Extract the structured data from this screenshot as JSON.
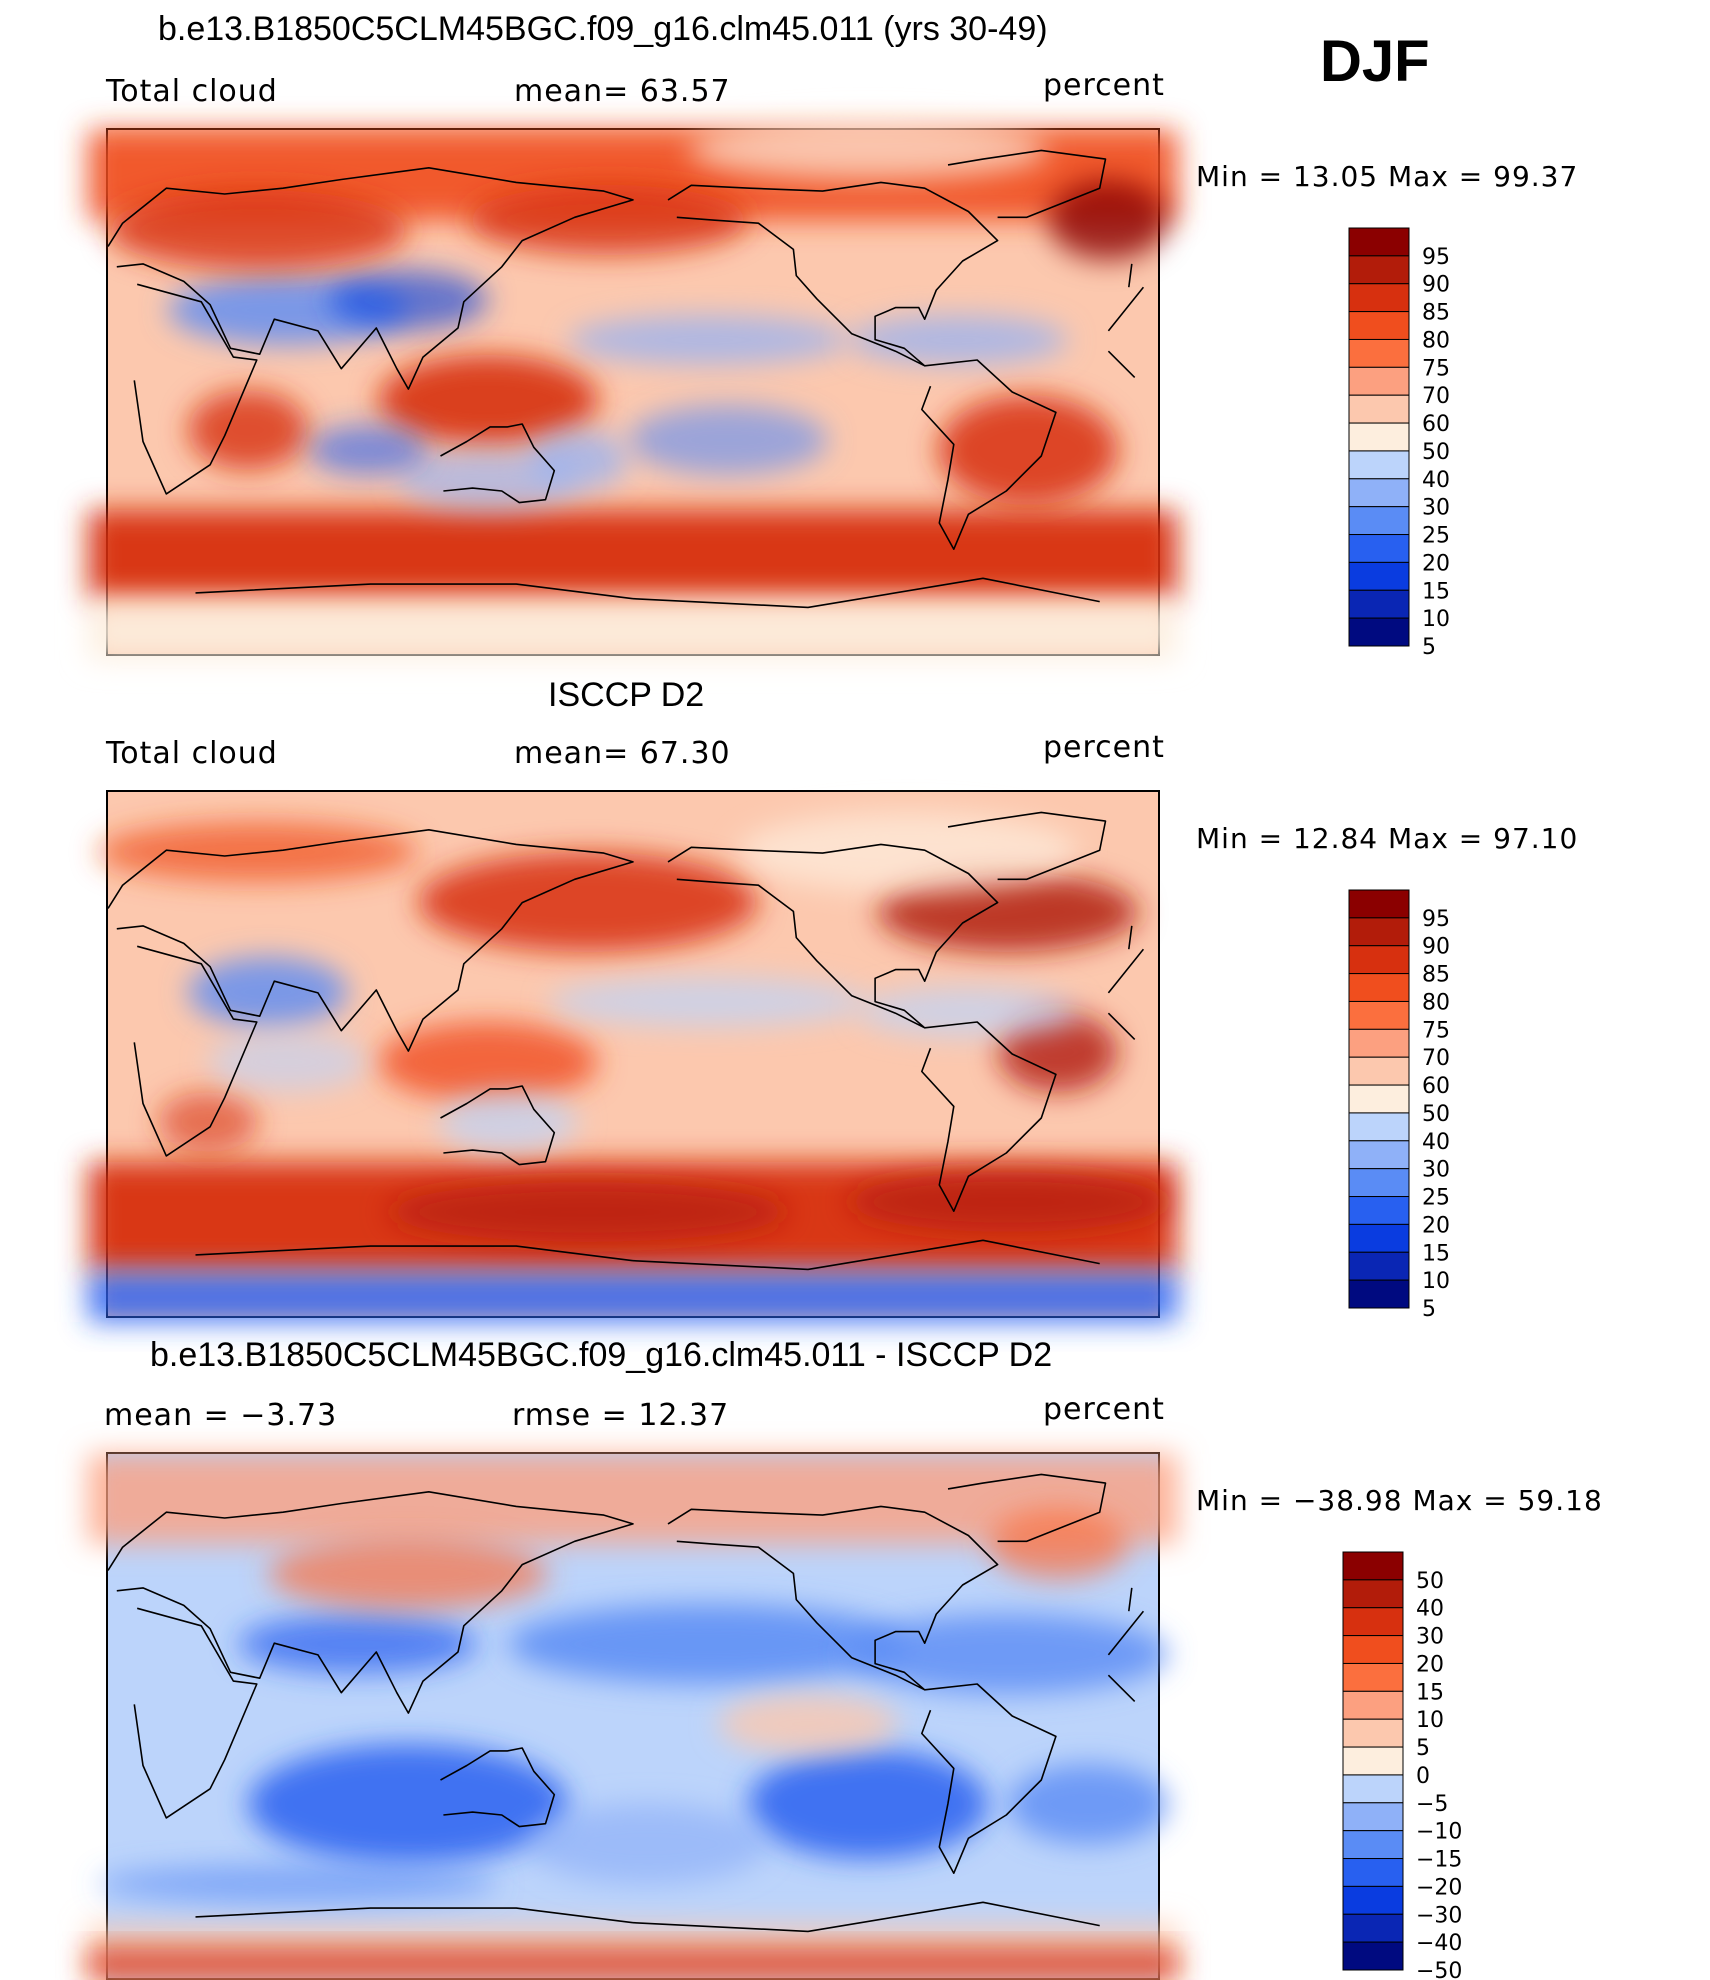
{
  "season": "DJF",
  "colors": {
    "reds": [
      "#8b0000",
      "#b21c0a",
      "#d7300f",
      "#f04e1e",
      "#fb6f3e",
      "#fca080",
      "#fcc8ae",
      "#fdeede"
    ],
    "blues": [
      "#dcecfc",
      "#bcd4fb",
      "#8fb1f8",
      "#5a8cf5",
      "#2860f0",
      "#0a3ce0",
      "#0a26b4",
      "#000a80"
    ]
  },
  "chart_data": [
    {
      "type": "heatmap",
      "title": "b.e13.B1850C5CLM45BGC.f09_g16.clm45.011 (yrs 30-49)",
      "left_label": "Total cloud",
      "center_label": "mean=   63.57",
      "right_label": "percent",
      "min_max": "Min  =    13.05  Max  =    99.37",
      "colorbar": {
        "levels": [
          "95",
          "90",
          "85",
          "80",
          "75",
          "70",
          "60",
          "50",
          "40",
          "30",
          "25",
          "20",
          "15",
          "10",
          "5"
        ]
      }
    },
    {
      "type": "heatmap",
      "title": "ISCCP D2",
      "left_label": "Total cloud",
      "center_label": "mean=   67.30",
      "right_label": "percent",
      "min_max": "Min  =    12.84  Max  =    97.10",
      "colorbar": {
        "levels": [
          "95",
          "90",
          "85",
          "80",
          "75",
          "70",
          "60",
          "50",
          "40",
          "30",
          "25",
          "20",
          "15",
          "10",
          "5"
        ]
      }
    },
    {
      "type": "heatmap",
      "title": "b.e13.B1850C5CLM45BGC.f09_g16.clm45.011 - ISCCP D2",
      "left_label": "mean  =    −3.73",
      "center_label": "rmse  =    12.37",
      "right_label": "percent",
      "min_max": "Min  = −38.98  Max  =    59.18",
      "colorbar": {
        "levels": [
          "50",
          "40",
          "30",
          "20",
          "15",
          "10",
          "5",
          "0",
          "−5",
          "−10",
          "−15",
          "−20",
          "−30",
          "−40",
          "−50"
        ]
      }
    }
  ]
}
